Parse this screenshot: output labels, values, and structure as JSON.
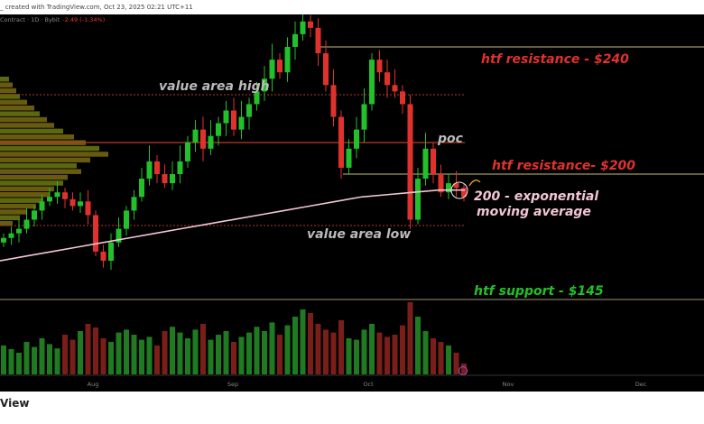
{
  "header": {
    "created_text": "_ created with TradingView.com, Oct 23, 2025 02:21 UTC+11"
  },
  "legend": {
    "symbol": "Contract · 1D · Bybit",
    "change": "-2.49 (-1.34%)"
  },
  "footer": {
    "brand": "View"
  },
  "colors": {
    "up": "#22c02a",
    "down": "#e0322c",
    "background": "#000000",
    "ema": "#f2c6d6",
    "resistance_line": "#c9c07a",
    "poc_line": "#c0392b"
  },
  "chart_data": {
    "type": "candlestick",
    "timeframe": "1D",
    "x_ticks": [
      "Aug",
      "Sep",
      "Oct",
      "Nov",
      "Dec"
    ],
    "closes": [
      172,
      174,
      176,
      180,
      184,
      188,
      190,
      192,
      189,
      186,
      188,
      182,
      166,
      162,
      170,
      176,
      184,
      190,
      198,
      204,
      200,
      196,
      200,
      204,
      210,
      214,
      208,
      212,
      216,
      220,
      214,
      218,
      222,
      226,
      230,
      236,
      232,
      240,
      244,
      248,
      246,
      238,
      228,
      218,
      202,
      208,
      214,
      222,
      236,
      232,
      228,
      226,
      222,
      180,
      198,
      208,
      200,
      192,
      196,
      194,
      190
    ],
    "volumes": [
      40,
      35,
      30,
      45,
      38,
      50,
      42,
      36,
      55,
      48,
      60,
      70,
      65,
      50,
      45,
      58,
      62,
      55,
      48,
      52,
      40,
      60,
      66,
      58,
      50,
      62,
      70,
      48,
      55,
      60,
      45,
      52,
      58,
      66,
      60,
      72,
      55,
      68,
      80,
      90,
      85,
      70,
      62,
      58,
      75,
      50,
      48,
      62,
      70,
      58,
      52,
      55,
      68,
      100,
      80,
      60,
      50,
      45,
      40,
      30,
      15
    ],
    "ema_200": [
      162,
      164,
      166,
      168,
      170,
      172,
      174,
      176,
      178,
      180,
      182,
      184,
      186,
      188,
      190,
      191,
      192,
      193,
      193
    ],
    "volume_profile": [
      10,
      14,
      18,
      22,
      30,
      38,
      44,
      52,
      60,
      70,
      82,
      95,
      110,
      120,
      100,
      85,
      90,
      75,
      70,
      60,
      55,
      48,
      40,
      30,
      22,
      14
    ],
    "annotations": {
      "htf_resistance_240": "htf resistance - $240",
      "value_area_high": "value area high",
      "poc": "poc",
      "htf_resistance_200": "htf resistance- $200",
      "ema_label_1": "200 - exponential",
      "ema_label_2": "moving average",
      "value_area_low": "value area low",
      "htf_support_145": "htf support - $145"
    },
    "levels": {
      "htf_resistance_high": 240,
      "htf_resistance_low": 200,
      "htf_support": 145
    }
  }
}
